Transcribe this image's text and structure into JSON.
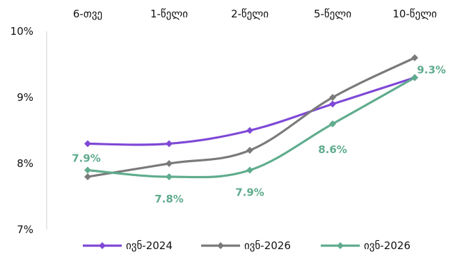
{
  "chart_data": {
    "type": "line",
    "categories": [
      "6-თვე",
      "1-წელი",
      "2-წელი",
      "5-წელი",
      "10-წელი"
    ],
    "ylim": [
      7,
      10
    ],
    "yticks": [
      "7%",
      "8%",
      "9%",
      "10%"
    ],
    "ytick_values": [
      7,
      8,
      9,
      10
    ],
    "grid": false,
    "legend_position": "bottom",
    "x_axis_position": "top",
    "series": [
      {
        "name": "ივნ-2024",
        "color": "#7f48d6",
        "values": [
          8.3,
          8.3,
          8.5,
          8.9,
          9.3
        ]
      },
      {
        "name": "ივნ-2026",
        "color": "#7a7a7a",
        "values": [
          7.8,
          8.0,
          8.2,
          9.0,
          9.6
        ]
      },
      {
        "name": "ივნ-2026",
        "color": "#5fac8d",
        "values": [
          7.9,
          7.8,
          7.9,
          8.6,
          9.3
        ]
      }
    ],
    "annotations": [
      {
        "text": "7.9%",
        "series": 2,
        "index": 0
      },
      {
        "text": "7.8%",
        "series": 2,
        "index": 1
      },
      {
        "text": "7.9%",
        "series": 2,
        "index": 2
      },
      {
        "text": "8.6%",
        "series": 2,
        "index": 3
      },
      {
        "text": "9.3%",
        "series": 2,
        "index": 4
      }
    ]
  }
}
